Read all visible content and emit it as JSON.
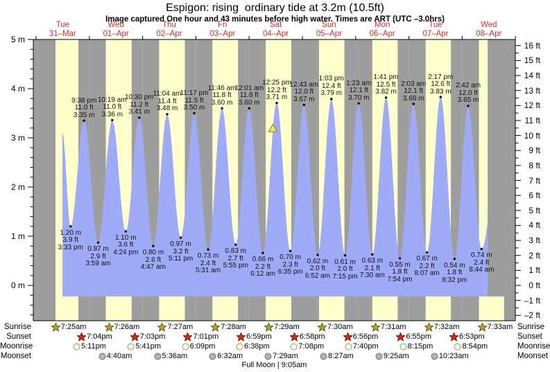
{
  "title": "Espigon: rising  ordinary tide at 3.2m (10.5ft)",
  "subtitle": "Image captured One hour and 43 minutes before high water. Times are ART (UTC –3.0hrs)",
  "row_labels": {
    "sunrise": "Sunrise",
    "sunset": "Sunset",
    "moonrise": "Moonrise",
    "moonset": "Moonset"
  },
  "chart_data": {
    "type": "area",
    "title": "Espigon: rising  ordinary tide at 3.2m (10.5ft)",
    "ylabel_left": "meters",
    "ylabel_right": "feet",
    "ylim_m": [
      -0.72,
      5.0
    ],
    "grid": false,
    "days": [
      {
        "name": "Tue",
        "date": "31–Mar"
      },
      {
        "name": "Wed",
        "date": "01–Apr"
      },
      {
        "name": "Thu",
        "date": "02–Apr"
      },
      {
        "name": "Fri",
        "date": "03–Apr"
      },
      {
        "name": "Sat",
        "date": "04–Apr"
      },
      {
        "name": "Sun",
        "date": "05–Apr"
      },
      {
        "name": "Mon",
        "date": "06–Apr"
      },
      {
        "name": "Tue",
        "date": "07–Apr"
      },
      {
        "name": "Wed",
        "date": "08–Apr"
      }
    ],
    "y_axis_left_ticks": [
      [
        "5 m",
        5
      ],
      [
        "4 m",
        4
      ],
      [
        "3 m",
        3
      ],
      [
        "2 m",
        2
      ],
      [
        "1 m",
        1
      ],
      [
        "0 m",
        0
      ]
    ],
    "y_axis_right_ticks": [
      [
        "16 ft",
        16
      ],
      [
        "15 ft",
        15
      ],
      [
        "14 ft",
        14
      ],
      [
        "13 ft",
        13
      ],
      [
        "12 ft",
        12
      ],
      [
        "11 ft",
        11
      ],
      [
        "10 ft",
        10
      ],
      [
        "9 ft",
        9
      ],
      [
        "8 ft",
        8
      ],
      [
        "7 ft",
        7
      ],
      [
        "6 ft",
        6
      ],
      [
        "5 ft",
        5
      ],
      [
        "4 ft",
        4
      ],
      [
        "3 ft",
        3
      ],
      [
        "2 ft",
        2
      ],
      [
        "1 ft",
        1
      ],
      [
        "0 ft",
        0
      ],
      [
        "–1 ft",
        -1
      ],
      [
        "–2 ft",
        -2
      ]
    ],
    "highs": [
      {
        "day": 0,
        "time": "9:38 pm",
        "ft": "11.0 ft",
        "m": "3.35 m"
      },
      {
        "day": 1,
        "time": "10:19 am",
        "ft": "11.0 ft",
        "m": "3.36 m"
      },
      {
        "day": 1,
        "time": "10:30 pm",
        "ft": "11.2 ft",
        "m": "3.41 m"
      },
      {
        "day": 2,
        "time": "11:04 am",
        "ft": "11.4 ft",
        "m": "3.48 m"
      },
      {
        "day": 2,
        "time": "11:17 pm",
        "ft": "11.5 ft",
        "m": "3.50 m"
      },
      {
        "day": 3,
        "time": "11:46 am",
        "ft": "11.8 ft",
        "m": "3.60 m"
      },
      {
        "day": 4,
        "time": "12:01 am",
        "ft": "11.8 ft",
        "m": "3.60 m"
      },
      {
        "day": 4,
        "time": "12:25 pm",
        "ft": "12.2 ft",
        "m": "3.71 m"
      },
      {
        "day": 5,
        "time": "12:43 am",
        "ft": "12.0 ft",
        "m": "3.67 m"
      },
      {
        "day": 5,
        "time": "1:03 pm",
        "ft": "12.4 ft",
        "m": "3.79 m"
      },
      {
        "day": 6,
        "time": "1:23 am",
        "ft": "12.1 ft",
        "m": "3.70 m"
      },
      {
        "day": 6,
        "time": "1:41 pm",
        "ft": "12.5 ft",
        "m": "3.82 m"
      },
      {
        "day": 7,
        "time": "2:03 am",
        "ft": "12.1 ft",
        "m": "3.69 m"
      },
      {
        "day": 7,
        "time": "2:17 pm",
        "ft": "12.6 ft",
        "m": "3.83 m"
      },
      {
        "day": 8,
        "time": "2:42 am",
        "ft": "12.0 ft",
        "m": "3.65 m"
      }
    ],
    "lows": [
      {
        "day": 0,
        "time": "3:33 pm",
        "ft": "3.9 ft",
        "m": "1.20 m"
      },
      {
        "day": 1,
        "time": "3:59 am",
        "ft": "2.9 ft",
        "m": "0.87 m"
      },
      {
        "day": 1,
        "time": "4:24 pm",
        "ft": "3.6 ft",
        "m": "1.10 m"
      },
      {
        "day": 2,
        "time": "4:47 am",
        "ft": "2.6 ft",
        "m": "0.80 m"
      },
      {
        "day": 2,
        "time": "5:11 pm",
        "ft": "3.2 ft",
        "m": "0.97 m"
      },
      {
        "day": 3,
        "time": "5:31 am",
        "ft": "2.4 ft",
        "m": "0.73 m"
      },
      {
        "day": 3,
        "time": "5:55 pm",
        "ft": "2.7 ft",
        "m": "0.83 m"
      },
      {
        "day": 4,
        "time": "6:12 am",
        "ft": "2.2 ft",
        "m": "0.66 m"
      },
      {
        "day": 4,
        "time": "6:35 pm",
        "ft": "2.3 ft",
        "m": "0.70 m"
      },
      {
        "day": 5,
        "time": "6:52 am",
        "ft": "2.0 ft",
        "m": "0.62 m"
      },
      {
        "day": 5,
        "time": "7:15 pm",
        "ft": "2.0 ft",
        "m": "0.61 m"
      },
      {
        "day": 6,
        "time": "7:30 am",
        "ft": "2.1 ft",
        "m": "0.63 m"
      },
      {
        "day": 6,
        "time": "7:54 pm",
        "ft": "1.8 ft",
        "m": "0.55 m"
      },
      {
        "day": 7,
        "time": "8:07 am",
        "ft": "2.2 ft",
        "m": "0.67 m"
      },
      {
        "day": 7,
        "time": "8:32 pm",
        "ft": "1.8 ft",
        "m": "0.54 m"
      },
      {
        "day": 8,
        "time": "8:44 am",
        "ft": "2.4 ft",
        "m": "0.74 m"
      }
    ],
    "sun_moon": {
      "sunrise": [
        {
          "day": 0,
          "time": "7:25am"
        },
        {
          "day": 1,
          "time": "7:26am"
        },
        {
          "day": 2,
          "time": "7:27am"
        },
        {
          "day": 3,
          "time": "7:28am"
        },
        {
          "day": 4,
          "time": "7:29am"
        },
        {
          "day": 5,
          "time": "7:30am"
        },
        {
          "day": 6,
          "time": "7:31am"
        },
        {
          "day": 7,
          "time": "7:32am"
        },
        {
          "day": 8,
          "time": "7:33am"
        }
      ],
      "sunset": [
        {
          "day": 0,
          "time": "7:04pm"
        },
        {
          "day": 1,
          "time": "7:03pm"
        },
        {
          "day": 2,
          "time": "7:01pm"
        },
        {
          "day": 3,
          "time": "6:59pm"
        },
        {
          "day": 4,
          "time": "6:58pm"
        },
        {
          "day": 5,
          "time": "6:56pm"
        },
        {
          "day": 6,
          "time": "6:55pm"
        },
        {
          "day": 7,
          "time": "6:53pm"
        }
      ],
      "moonrise": [
        {
          "day": 0,
          "time": "5:11pm"
        },
        {
          "day": 1,
          "time": "5:41pm"
        },
        {
          "day": 2,
          "time": "6:09pm"
        },
        {
          "day": 3,
          "time": "6:38pm"
        },
        {
          "day": 4,
          "time": "7:08pm"
        },
        {
          "day": 5,
          "time": "7:40pm"
        },
        {
          "day": 6,
          "time": "8:15pm"
        },
        {
          "day": 7,
          "time": "8:54pm"
        }
      ],
      "moonset": [
        {
          "day": 1,
          "time": "4:40am"
        },
        {
          "day": 2,
          "time": "5:36am"
        },
        {
          "day": 3,
          "time": "6:32am"
        },
        {
          "day": 4,
          "time": "7:29am"
        },
        {
          "day": 5,
          "time": "8:27am"
        },
        {
          "day": 6,
          "time": "9:25am"
        },
        {
          "day": 7,
          "time": "10:23am"
        }
      ]
    },
    "full_moon_note": "Full Moon | 9:05am",
    "marker": {
      "level_m": 3.2,
      "minutes_before_high": 103,
      "ref_high_time": "12:25 pm",
      "ref_high_day": 4
    },
    "colors": {
      "night_band": "#9e9e9e",
      "day_band": "#ffffcc",
      "tide_fill": "#a0abf7",
      "date_text": "#c03030",
      "annotation_text": "#111111",
      "sunrise_icon": "#b2a42e",
      "sunset_icon": "#d42a12",
      "moonrise_icon": "#ffffd8",
      "moonset_icon": "#b4b4b4",
      "marker_fill": "#e9e85a"
    }
  }
}
